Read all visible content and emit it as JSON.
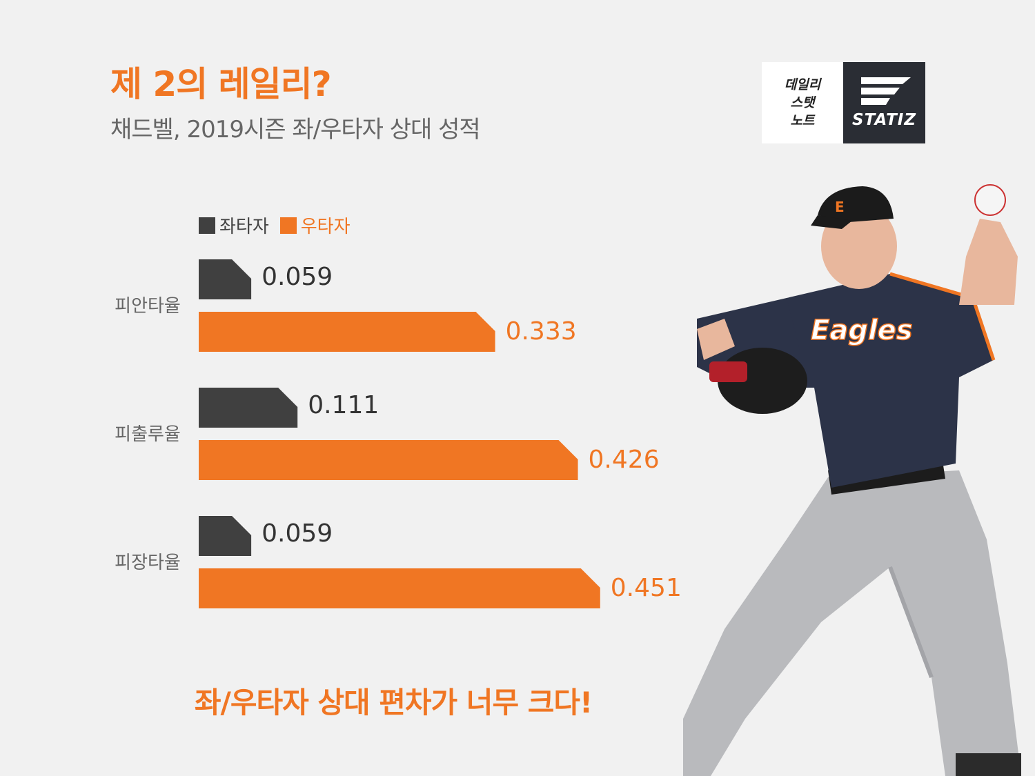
{
  "header": {
    "title": "제 2의 레일리?",
    "subtitle": "채드벨, 2019시즌 좌/우타자 상대 성적"
  },
  "logo": {
    "left_lines": [
      "데일리",
      "스탯",
      "노트"
    ],
    "right_word": "STATIZ"
  },
  "legend": {
    "left_label": "좌타자",
    "right_label": "우타자"
  },
  "colors": {
    "accent": "#f07623",
    "dark": "#404040",
    "background": "#f1f1f1"
  },
  "chart_data": {
    "type": "bar",
    "orientation": "horizontal",
    "categories": [
      "피안타율",
      "피출루율",
      "피장타율"
    ],
    "series": [
      {
        "name": "좌타자",
        "values": [
          0.059,
          0.111,
          0.059
        ],
        "labels": [
          "0.059",
          "0.111",
          "0.059"
        ],
        "color": "#404040"
      },
      {
        "name": "우타자",
        "values": [
          0.333,
          0.426,
          0.451
        ],
        "labels": [
          "0.333",
          "0.426",
          "0.451"
        ],
        "color": "#f07623"
      }
    ],
    "legend": "top-left",
    "grid": false
  },
  "footer": {
    "text": "좌/우타자 상대 편차가 너무 크다!"
  }
}
